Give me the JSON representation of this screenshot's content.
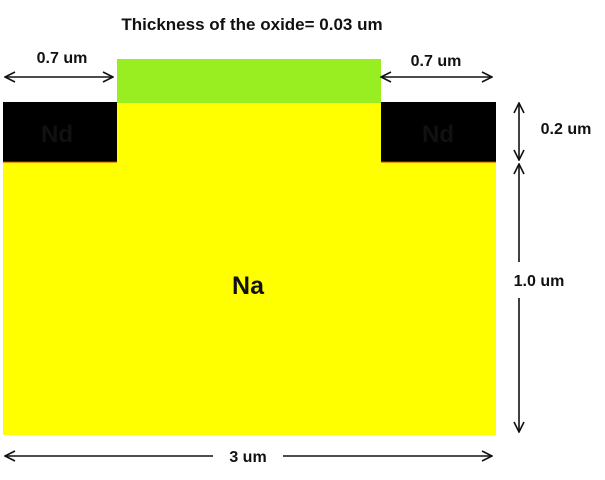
{
  "title": "Thickness of the oxide= 0.03 um",
  "regions": {
    "substrate": {
      "label": "Na",
      "color": "#FFFF00"
    },
    "source": {
      "label": "Nd",
      "color": "#000000",
      "text_color": "#FFFFFF"
    },
    "drain": {
      "label": "Nd",
      "color": "#000000",
      "text_color": "#FFFFFF"
    },
    "oxide": {
      "color": "#99EE22"
    }
  },
  "dimensions": {
    "left_width": "0.7 um",
    "right_width": "0.7 um",
    "nd_depth": "0.2 um",
    "substrate_depth": "1.0 um",
    "total_width": "3 um"
  }
}
